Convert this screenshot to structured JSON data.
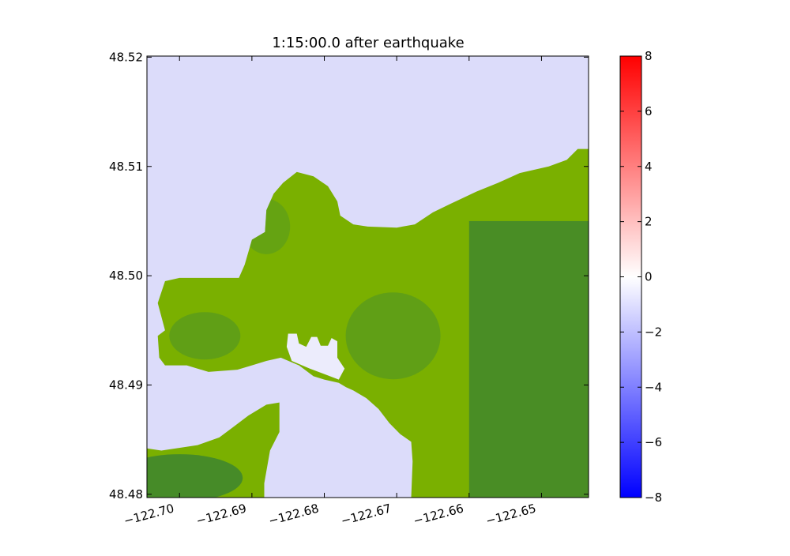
{
  "chart_data": {
    "type": "heatmap",
    "title": "1:15:00.0 after earthquake",
    "xlabel": "",
    "ylabel": "",
    "xlim": [
      -122.7045,
      -122.6435
    ],
    "ylim": [
      48.4797,
      48.5201
    ],
    "x_ticks": [
      -122.7,
      -122.69,
      -122.68,
      -122.67,
      -122.66,
      -122.65
    ],
    "x_tick_labels": [
      "−122.70",
      "−122.69",
      "−122.68",
      "−122.67",
      "−122.66",
      "−122.65"
    ],
    "y_ticks": [
      48.48,
      48.49,
      48.5,
      48.51,
      48.52
    ],
    "y_tick_labels": [
      "48.48",
      "48.49",
      "48.50",
      "48.51",
      "48.52"
    ],
    "colorbar": {
      "range": [
        -8,
        8
      ],
      "ticks": [
        -8,
        -6,
        -4,
        -2,
        0,
        2,
        4,
        6,
        8
      ],
      "tick_labels": [
        "−8",
        "−6",
        "−4",
        "−2",
        "0",
        "2",
        "4",
        "6",
        "8"
      ],
      "colormap": [
        "#0000ff",
        "#ffffff",
        "#ff0000"
      ]
    },
    "grid": false,
    "colors": {
      "water": "#dcdcfa",
      "water_deeper": "#d2d2f8",
      "land_light": "#7ab000",
      "land_mid": "#4f9524",
      "land_dark": "#3a8232",
      "dry_pocket": "#ececfc"
    },
    "land_regions": [
      {
        "name": "peninsula",
        "outline": [
          [
            -122.7045,
            48.4797
          ],
          [
            -122.7045,
            48.4842
          ],
          [
            -122.7025,
            48.484
          ],
          [
            -122.6995,
            48.4843
          ],
          [
            -122.6975,
            48.4845
          ],
          [
            -122.6945,
            48.4852
          ],
          [
            -122.6925,
            48.4862
          ],
          [
            -122.6905,
            48.4872
          ],
          [
            -122.688,
            48.4882
          ],
          [
            -122.6862,
            48.4884
          ],
          [
            -122.6862,
            48.4857
          ],
          [
            -122.6875,
            48.484
          ],
          [
            -122.6883,
            48.481
          ],
          [
            -122.6883,
            48.4797
          ]
        ]
      },
      {
        "name": "mainland",
        "outline": [
          [
            -122.6435,
            48.5116
          ],
          [
            -122.645,
            48.5116
          ],
          [
            -122.6465,
            48.5106
          ],
          [
            -122.649,
            48.51
          ],
          [
            -122.653,
            48.5094
          ],
          [
            -122.656,
            48.5085
          ],
          [
            -122.659,
            48.5077
          ],
          [
            -122.6625,
            48.5066
          ],
          [
            -122.665,
            48.5058
          ],
          [
            -122.6675,
            48.5047
          ],
          [
            -122.67,
            48.5044
          ],
          [
            -122.674,
            48.5045
          ],
          [
            -122.676,
            48.5047
          ],
          [
            -122.6778,
            48.5055
          ],
          [
            -122.6782,
            48.5068
          ],
          [
            -122.6795,
            48.5082
          ],
          [
            -122.6815,
            48.5091
          ],
          [
            -122.6838,
            48.5095
          ],
          [
            -122.6857,
            48.5085
          ],
          [
            -122.687,
            48.5075
          ],
          [
            -122.688,
            48.506
          ],
          [
            -122.6882,
            48.504
          ],
          [
            -122.69,
            48.5033
          ],
          [
            -122.691,
            48.501
          ],
          [
            -122.6918,
            48.4998
          ],
          [
            -122.694,
            48.4998
          ],
          [
            -122.697,
            48.4998
          ],
          [
            -122.7,
            48.4998
          ],
          [
            -122.702,
            48.4995
          ],
          [
            -122.703,
            48.4975
          ],
          [
            -122.702,
            48.495
          ],
          [
            -122.703,
            48.4945
          ],
          [
            -122.7028,
            48.4925
          ],
          [
            -122.702,
            48.4918
          ],
          [
            -122.699,
            48.4918
          ],
          [
            -122.696,
            48.4912
          ],
          [
            -122.692,
            48.4914
          ],
          [
            -122.69,
            48.4918
          ],
          [
            -122.688,
            48.4922
          ],
          [
            -122.686,
            48.4925
          ],
          [
            -122.6835,
            48.4918
          ],
          [
            -122.6815,
            48.4908
          ],
          [
            -122.68,
            48.4905
          ],
          [
            -122.678,
            48.4902
          ],
          [
            -122.677,
            48.4898
          ],
          [
            -122.676,
            48.4895
          ],
          [
            -122.6742,
            48.4888
          ],
          [
            -122.6725,
            48.4878
          ],
          [
            -122.671,
            48.4865
          ],
          [
            -122.6695,
            48.4855
          ],
          [
            -122.668,
            48.4848
          ],
          [
            -122.6678,
            48.483
          ],
          [
            -122.668,
            48.4797
          ],
          [
            -122.6435,
            48.4797
          ]
        ]
      }
    ],
    "dry_regions": [
      {
        "name": "inner-pocket",
        "outline": [
          [
            -122.685,
            48.4947
          ],
          [
            -122.6838,
            48.4947
          ],
          [
            -122.6835,
            48.4938
          ],
          [
            -122.6825,
            48.4935
          ],
          [
            -122.6818,
            48.4944
          ],
          [
            -122.681,
            48.4944
          ],
          [
            -122.6805,
            48.4936
          ],
          [
            -122.6795,
            48.4936
          ],
          [
            -122.679,
            48.4943
          ],
          [
            -122.6782,
            48.494
          ],
          [
            -122.6782,
            48.4925
          ],
          [
            -122.6772,
            48.4915
          ],
          [
            -122.678,
            48.4905
          ],
          [
            -122.68,
            48.491
          ],
          [
            -122.682,
            48.4915
          ],
          [
            -122.6845,
            48.4922
          ],
          [
            -122.6852,
            48.4935
          ]
        ]
      }
    ]
  }
}
